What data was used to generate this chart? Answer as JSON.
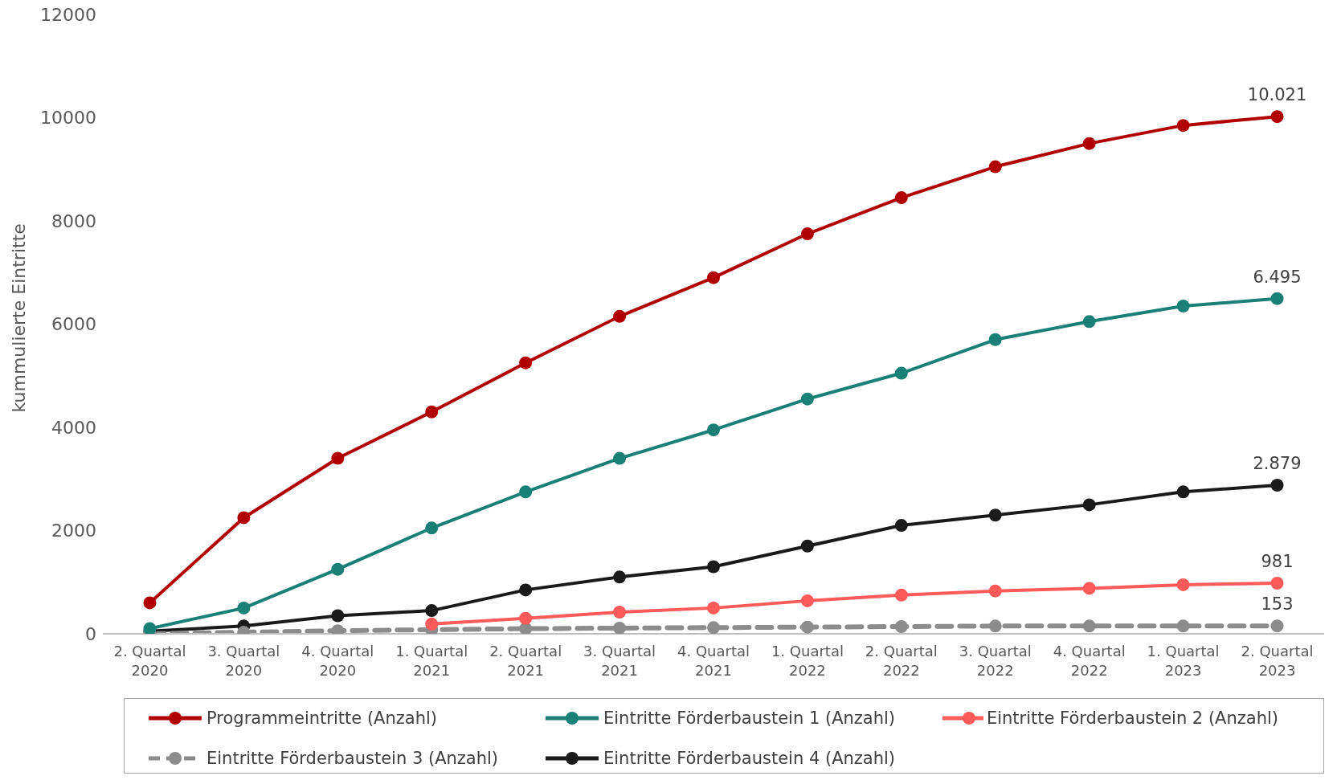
{
  "chart_data": {
    "type": "line",
    "ylabel": "kummulierte Eintritte",
    "categories": [
      "2. Quartal 2020",
      "3. Quartal 2020",
      "4. Quartal 2020",
      "1. Quartal 2021",
      "2. Quartal 2021",
      "3. Quartal 2021",
      "4. Quartal 2021",
      "1. Quartal 2022",
      "2. Quartal 2022",
      "3. Quartal 2022",
      "4. Quartal 2022",
      "1. Quartal 2023",
      "2. Quartal 2023"
    ],
    "series": [
      {
        "name": "Programmeintritte (Anzahl)",
        "color": "#b00000",
        "values": [
          600,
          2250,
          3400,
          4300,
          5250,
          6150,
          6900,
          7750,
          8450,
          9050,
          9500,
          9850,
          10021
        ],
        "value_labels": [
          null,
          null,
          null,
          null,
          null,
          null,
          null,
          null,
          null,
          null,
          null,
          null,
          "10.021"
        ]
      },
      {
        "name": "Eintritte Förderbaustein 1 (Anzahl)",
        "color": "#1a8077",
        "values": [
          100,
          500,
          1250,
          2050,
          2750,
          3400,
          3950,
          4550,
          5050,
          5700,
          6050,
          6350,
          6495
        ],
        "value_labels": [
          null,
          null,
          null,
          null,
          null,
          null,
          null,
          null,
          null,
          null,
          null,
          null,
          "6.495"
        ]
      },
      {
        "name": "Eintritte Förderbaustein 2 (Anzahl)",
        "color": "#ff5a5a",
        "values": [
          null,
          null,
          null,
          190,
          300,
          420,
          500,
          640,
          750,
          830,
          880,
          950,
          981
        ],
        "value_labels": [
          null,
          null,
          null,
          null,
          null,
          null,
          null,
          null,
          null,
          null,
          null,
          null,
          "981"
        ]
      },
      {
        "name": "Eintritte Förderbaustein 3 (Anzahl)",
        "color": "#8c8c8c",
        "line_style": "dashed",
        "values": [
          0,
          30,
          60,
          80,
          100,
          110,
          120,
          130,
          140,
          150,
          150,
          150,
          153
        ],
        "value_labels": [
          null,
          null,
          null,
          null,
          null,
          null,
          null,
          null,
          null,
          null,
          null,
          null,
          "153"
        ]
      },
      {
        "name": "Eintritte Förderbaustein 4 (Anzahl)",
        "color": "#1a1a1a",
        "values": [
          50,
          150,
          350,
          450,
          850,
          1100,
          1300,
          1700,
          2100,
          2300,
          2500,
          2750,
          2879
        ],
        "value_labels": [
          null,
          null,
          null,
          null,
          null,
          null,
          null,
          null,
          null,
          null,
          null,
          null,
          "2.879"
        ]
      }
    ],
    "ylim": [
      0,
      12000
    ],
    "yticks": [
      0,
      2000,
      4000,
      6000,
      8000,
      10000,
      12000
    ],
    "grid": false,
    "legend": "bottom",
    "marker": "circle",
    "line_style": "solid"
  }
}
